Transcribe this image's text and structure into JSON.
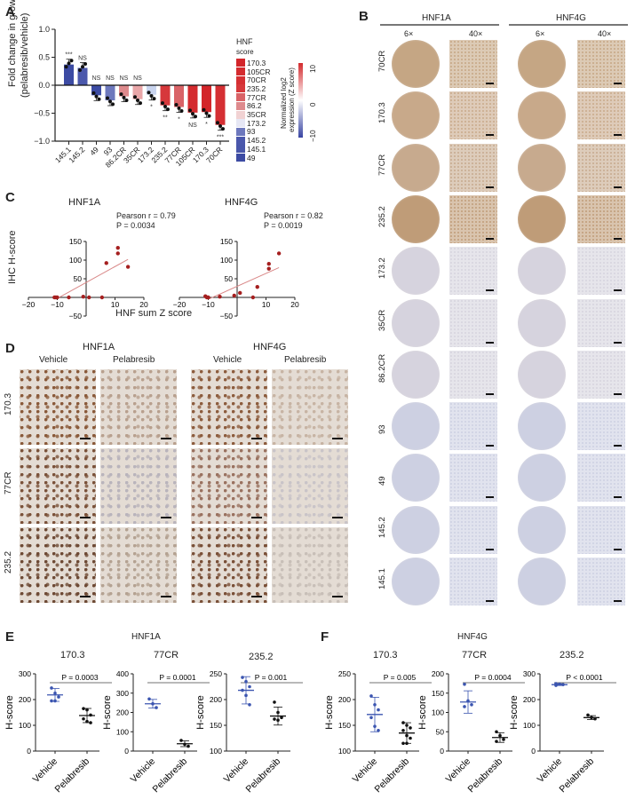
{
  "panels": {
    "A": {
      "letter": "A",
      "ylabel_line1": "Fold change in growth",
      "ylabel_line2": "(pelabresib/vehicle)",
      "legend_title_1": "HNF",
      "legend_title_2": "score",
      "legend_items": [
        "170.3",
        "105CR",
        "70CR",
        "235.2",
        "77CR",
        "86.2",
        "35CR",
        "173.2",
        "93",
        "145.2",
        "145.1",
        "49"
      ],
      "legend_colors": [
        "#d3252a",
        "#d42b2f",
        "#d52f33",
        "#d6383b",
        "#d96367",
        "#de8a8d",
        "#f1d2d3",
        "#e6e7f4",
        "#6d78bd",
        "#4b58ac",
        "#4957aa",
        "#3c4ba3"
      ],
      "colorbar_label_1": "Normalized log2",
      "colorbar_label_2": "expression (Z score)",
      "colorbar_ticks": [
        "10",
        "0",
        "−10"
      ]
    },
    "B": {
      "letter": "B",
      "groups": [
        "HNF1A",
        "HNF4G"
      ],
      "magnifications": [
        "6×",
        "40×",
        "6×",
        "40×"
      ],
      "rows": [
        "70CR",
        "170.3",
        "77CR",
        "235.2",
        "173.2",
        "35CR",
        "86.2CR",
        "93",
        "49",
        "145.2",
        "145.1"
      ]
    },
    "C": {
      "letter": "C",
      "ylabel": "IHC H-score",
      "xlabel": "HNF sum  Z score",
      "plots": [
        {
          "title": "HNF1A",
          "pearson": "Pearson r = 0.79",
          "p": "P = 0.0034"
        },
        {
          "title": "HNF4G",
          "pearson": "Pearson r = 0.82",
          "p": "P = 0.0019"
        }
      ]
    },
    "D": {
      "letter": "D",
      "groups": [
        "HNF1A",
        "HNF4G"
      ],
      "columns": [
        "Vehicle",
        "Pelabresib",
        "Vehicle",
        "Pelabresib"
      ],
      "rows": [
        "170.3",
        "77CR",
        "235.2"
      ]
    },
    "E": {
      "letter": "E",
      "title": "HNF1A",
      "ylabel": "H-score",
      "xticks": [
        "Vehicle",
        "Pelabresib"
      ],
      "plots": [
        {
          "title": "170.3",
          "p": "P = 0.0003"
        },
        {
          "title": "77CR",
          "p": "P = 0.0001"
        },
        {
          "title": "235.2",
          "p": "P = 0.001"
        }
      ]
    },
    "F": {
      "letter": "F",
      "title": "HNF4G",
      "ylabel": "H-score",
      "xticks": [
        "Vehicle",
        "Pelabresib"
      ],
      "plots": [
        {
          "title": "170.3",
          "p": "P = 0.005"
        },
        {
          "title": "77CR",
          "p": "P = 0.0004"
        },
        {
          "title": "235.2",
          "p": "P < 0.0001"
        }
      ]
    }
  },
  "chart_data": [
    {
      "type": "bar",
      "panel": "A",
      "title": "",
      "xlabel": "",
      "ylabel": "Fold change in growth (pelabresib/vehicle)",
      "ylim": [
        -1.0,
        1.0
      ],
      "yticks": [
        "1.0",
        "0.5",
        "0.0",
        "−0.5",
        "−1.0"
      ],
      "categories": [
        "145.1",
        "145.2",
        "49",
        "93",
        "86.2CR",
        "35CR",
        "173.2",
        "235.2",
        "77CR",
        "105CR",
        "170.3",
        "70CR"
      ],
      "values": [
        0.37,
        0.31,
        -0.18,
        -0.27,
        -0.2,
        -0.25,
        -0.17,
        -0.36,
        -0.39,
        -0.49,
        -0.48,
        -0.71
      ],
      "significance": [
        "***",
        "NS",
        "NS",
        "NS",
        "NS",
        "NS",
        "*",
        "**",
        "*",
        "NS",
        "*",
        "***"
      ],
      "colors": [
        "#3c4ba3",
        "#4b58ac",
        "#3c4ba3",
        "#6d78bd",
        "#de8a8d",
        "#e9a6a8",
        "#c9d4ee",
        "#d6383b",
        "#d96367",
        "#d42b2f",
        "#d3252a",
        "#d52f33"
      ]
    },
    {
      "type": "scatter",
      "panel": "C",
      "title": "HNF1A",
      "xlabel": "HNF sum Z score",
      "ylabel": "IHC H-score",
      "xlim": [
        -20,
        20
      ],
      "ylim": [
        -50,
        150
      ],
      "x": [
        -11,
        -10.5,
        -10,
        -6,
        -1,
        1,
        5.5,
        7,
        11,
        11,
        14.5
      ],
      "y": [
        0,
        0,
        0,
        0,
        2,
        0,
        0,
        92,
        133,
        118,
        82
      ],
      "annotation": [
        "Pearson r = 0.79",
        "P = 0.0034"
      ]
    },
    {
      "type": "scatter",
      "panel": "C",
      "title": "HNF4G",
      "xlabel": "HNF sum Z score",
      "ylabel": "IHC H-score",
      "xlim": [
        -20,
        20
      ],
      "ylim": [
        -50,
        150
      ],
      "x": [
        -11,
        -10.5,
        -10,
        -6,
        -1,
        1,
        5.5,
        7,
        11,
        11,
        14.5
      ],
      "y": [
        3,
        0,
        0,
        2,
        5,
        12,
        0,
        28,
        90,
        77,
        118
      ],
      "annotation": [
        "Pearson r = 0.82",
        "P = 0.0019"
      ]
    },
    {
      "type": "scatter",
      "panel": "E",
      "title": "170.3",
      "ylabel": "H-score",
      "categories": [
        "Vehicle",
        "Pelabresib"
      ],
      "ylim": [
        0,
        300
      ],
      "series": [
        {
          "name": "Vehicle",
          "values": [
            245,
            225,
            210,
            195,
            195
          ]
        },
        {
          "name": "Pelabresib",
          "values": [
            165,
            160,
            140,
            125,
            115,
            110
          ]
        }
      ],
      "means": [
        218,
        138
      ],
      "annotation": "P = 0.0003"
    },
    {
      "type": "scatter",
      "panel": "E",
      "title": "77CR",
      "ylabel": "H-score",
      "categories": [
        "Vehicle",
        "Pelabresib"
      ],
      "ylim": [
        0,
        400
      ],
      "series": [
        {
          "name": "Vehicle",
          "values": [
            270,
            245,
            225
          ]
        },
        {
          "name": "Pelabresib",
          "values": [
            55,
            35,
            25
          ]
        }
      ],
      "means": [
        245,
        38
      ],
      "annotation": "P = 0.0001"
    },
    {
      "type": "scatter",
      "panel": "E",
      "title": "235.2",
      "ylabel": "H-score",
      "categories": [
        "Vehicle",
        "Pelabresib"
      ],
      "ylim": [
        100,
        250
      ],
      "series": [
        {
          "name": "Vehicle",
          "values": [
            243,
            235,
            225,
            218,
            208,
            190
          ]
        },
        {
          "name": "Pelabresib",
          "values": [
            195,
            175,
            165,
            162,
            160
          ]
        }
      ],
      "means": [
        218,
        168
      ],
      "annotation": "P = 0.001"
    },
    {
      "type": "scatter",
      "panel": "F",
      "title": "170.3",
      "ylabel": "H-score",
      "categories": [
        "Vehicle",
        "Pelabresib"
      ],
      "ylim": [
        100,
        250
      ],
      "series": [
        {
          "name": "Vehicle",
          "values": [
            207,
            190,
            180,
            165,
            148,
            140
          ]
        },
        {
          "name": "Pelabresib",
          "values": [
            155,
            150,
            145,
            140,
            130,
            125,
            115,
            115
          ]
        }
      ],
      "means": [
        171,
        135
      ],
      "annotation": "P = 0.005"
    },
    {
      "type": "scatter",
      "panel": "F",
      "title": "77CR",
      "ylabel": "H-score",
      "categories": [
        "Vehicle",
        "Pelabresib"
      ],
      "ylim": [
        0,
        200
      ],
      "series": [
        {
          "name": "Vehicle",
          "values": [
            173,
            130,
            120,
            115
          ]
        },
        {
          "name": "Pelabresib",
          "values": [
            50,
            40,
            30,
            25
          ]
        }
      ],
      "means": [
        127,
        35
      ],
      "annotation": "P = 0.0004"
    },
    {
      "type": "scatter",
      "panel": "F",
      "title": "235.2",
      "ylabel": "H-score",
      "categories": [
        "Vehicle",
        "Pelabresib"
      ],
      "ylim": [
        0,
        300
      ],
      "series": [
        {
          "name": "Vehicle",
          "values": [
            262,
            260,
            258,
            255
          ]
        },
        {
          "name": "Pelabresib",
          "values": [
            140,
            130,
            125
          ]
        }
      ],
      "means": [
        258,
        130
      ],
      "annotation": "P < 0.0001"
    }
  ]
}
